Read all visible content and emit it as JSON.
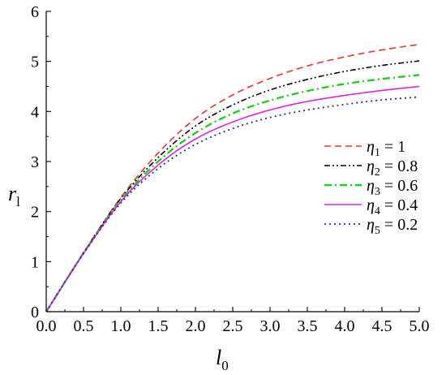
{
  "chart_data": {
    "type": "line",
    "title": "",
    "xlabel": "l",
    "xlabel_sub": "0",
    "ylabel": "r",
    "ylabel_sub": "l",
    "xlim": [
      0,
      5
    ],
    "ylim": [
      0,
      6
    ],
    "xticks": [
      "0.0",
      "0.5",
      "1.0",
      "1.5",
      "2.0",
      "2.5",
      "3.0",
      "3.5",
      "4.0",
      "4.5",
      "5.0"
    ],
    "yticks": [
      "0",
      "1",
      "2",
      "3",
      "4",
      "5",
      "6"
    ],
    "grid": false,
    "legend_position": "right",
    "x": [
      0,
      0.5,
      1.0,
      1.5,
      2.0,
      2.5,
      3.0,
      3.5,
      4.0,
      4.5,
      5.0
    ],
    "series": [
      {
        "name": "η1 = 1",
        "sym": "η",
        "sub": "1",
        "val": " = 1",
        "color": "#e8322e",
        "dash": "8,5",
        "width": 1.6,
        "values": [
          0,
          1.18,
          2.28,
          3.17,
          3.86,
          4.33,
          4.66,
          4.91,
          5.09,
          5.23,
          5.34
        ]
      },
      {
        "name": "η2 = 0.8",
        "sym": "η",
        "sub": "2",
        "val": " = 0.8",
        "color": "#000000",
        "dash": "7,3,2,3,2,3",
        "width": 1.6,
        "values": [
          0,
          1.18,
          2.26,
          3.08,
          3.71,
          4.13,
          4.43,
          4.64,
          4.8,
          4.92,
          5.01
        ]
      },
      {
        "name": "η3 = 0.6",
        "sym": "η",
        "sub": "3",
        "val": " = 0.6",
        "color": "#22cc22",
        "dash": "9,4,2,4",
        "width": 2.4,
        "values": [
          0,
          1.17,
          2.23,
          3.0,
          3.57,
          3.96,
          4.22,
          4.41,
          4.55,
          4.65,
          4.73
        ]
      },
      {
        "name": "η4 = 0.4",
        "sym": "η",
        "sub": "4",
        "val": " = 0.4",
        "color": "#dd22dd",
        "dash": "",
        "width": 1.6,
        "values": [
          0,
          1.16,
          2.2,
          2.93,
          3.45,
          3.79,
          4.03,
          4.2,
          4.32,
          4.42,
          4.5
        ]
      },
      {
        "name": "η5 = 0.2",
        "sym": "η",
        "sub": "5",
        "val": " = 0.2",
        "color": "#1f2fa0",
        "dash": "2,4",
        "width": 1.8,
        "values": [
          0,
          1.16,
          2.17,
          2.86,
          3.34,
          3.66,
          3.88,
          4.03,
          4.14,
          4.23,
          4.29
        ]
      }
    ]
  }
}
